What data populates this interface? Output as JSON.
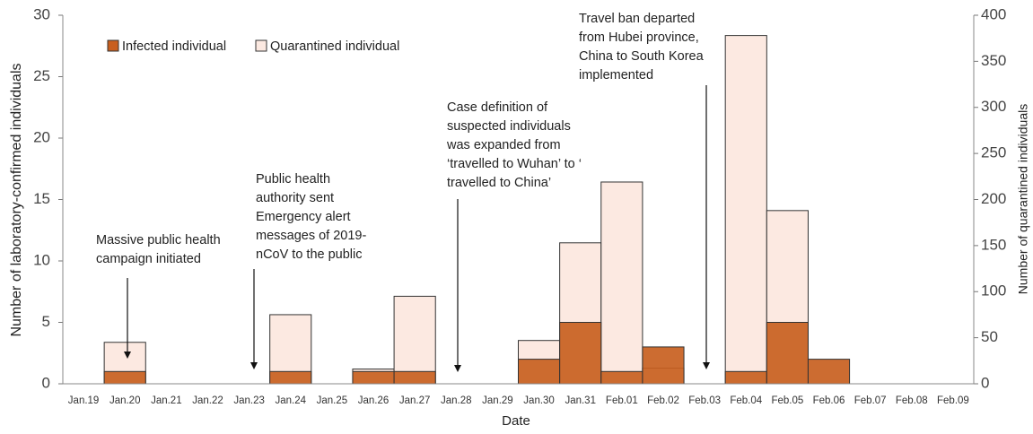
{
  "chart_data": {
    "type": "bar",
    "x_label": "Date",
    "y_label": "Number of laboratory-confirmed  individuals",
    "y2_label": "Number of quarantined individuals",
    "categories": [
      "Jan.19",
      "Jan.20",
      "Jan.21",
      "Jan.22",
      "Jan.23",
      "Jan.24",
      "Jan.25",
      "Jan.26",
      "Jan.27",
      "Jan.28",
      "Jan.29",
      "Jan.30",
      "Jan.31",
      "Feb.01",
      "Feb.02",
      "Feb.03",
      "Feb.04",
      "Feb.05",
      "Feb.06",
      "Feb.07",
      "Feb.08",
      "Feb.09"
    ],
    "series": [
      {
        "name": "Quarantined individual",
        "color": "#fce9e1",
        "axis": "y2",
        "values": [
          0,
          45,
          0,
          0,
          0,
          75,
          0,
          16,
          95,
          0,
          0,
          47,
          153,
          219,
          17,
          0,
          378,
          188,
          0,
          0,
          0,
          0
        ]
      },
      {
        "name": "Infected individual",
        "color": "#c85f1f",
        "axis": "y",
        "values": [
          0,
          1,
          0,
          0,
          0,
          1,
          0,
          1,
          1,
          0,
          0,
          2,
          5,
          1,
          3,
          0,
          1,
          5,
          2,
          0,
          0,
          0
        ]
      }
    ],
    "ylim": [
      0,
      30
    ],
    "yticks": [
      0,
      5,
      10,
      15,
      20,
      25,
      30
    ],
    "y2lim": [
      0,
      400
    ],
    "y2ticks": [
      0,
      50,
      100,
      150,
      200,
      250,
      300,
      350,
      400
    ],
    "annotations": [
      [
        "Massive public health",
        "campaign initiated"
      ],
      [
        "Public health",
        "authority sent",
        "Emergency alert",
        "messages of 2019-",
        "nCoV to the public"
      ],
      [
        "Case definition of",
        "suspected individuals",
        "was expanded from",
        "‘travelled to Wuhan’ to ‘",
        "travelled to China’"
      ],
      [
        "Travel ban departed",
        "from Hubei province,",
        "China to South Korea",
        "implemented"
      ]
    ]
  }
}
